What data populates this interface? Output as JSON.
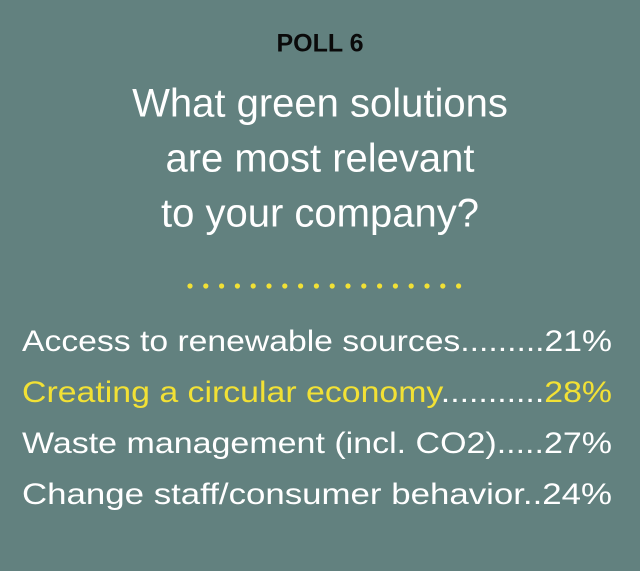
{
  "poll_label": "POLL 6",
  "question_lines": [
    "What green solutions",
    "are most relevant",
    "to your company?"
  ],
  "items": [
    {
      "label": "Access to renewable sources",
      "leader": ".........",
      "value": "21%",
      "highlight": false
    },
    {
      "label": "Creating a circular economy",
      "leader": "...........",
      "value": "28%",
      "highlight": true
    },
    {
      "label": "Waste management (incl. CO2)",
      "leader": ".....",
      "value": "27%",
      "highlight": false
    },
    {
      "label": "Change staff/consumer behavior",
      "leader": "..",
      "value": "24%",
      "highlight": false
    }
  ]
}
